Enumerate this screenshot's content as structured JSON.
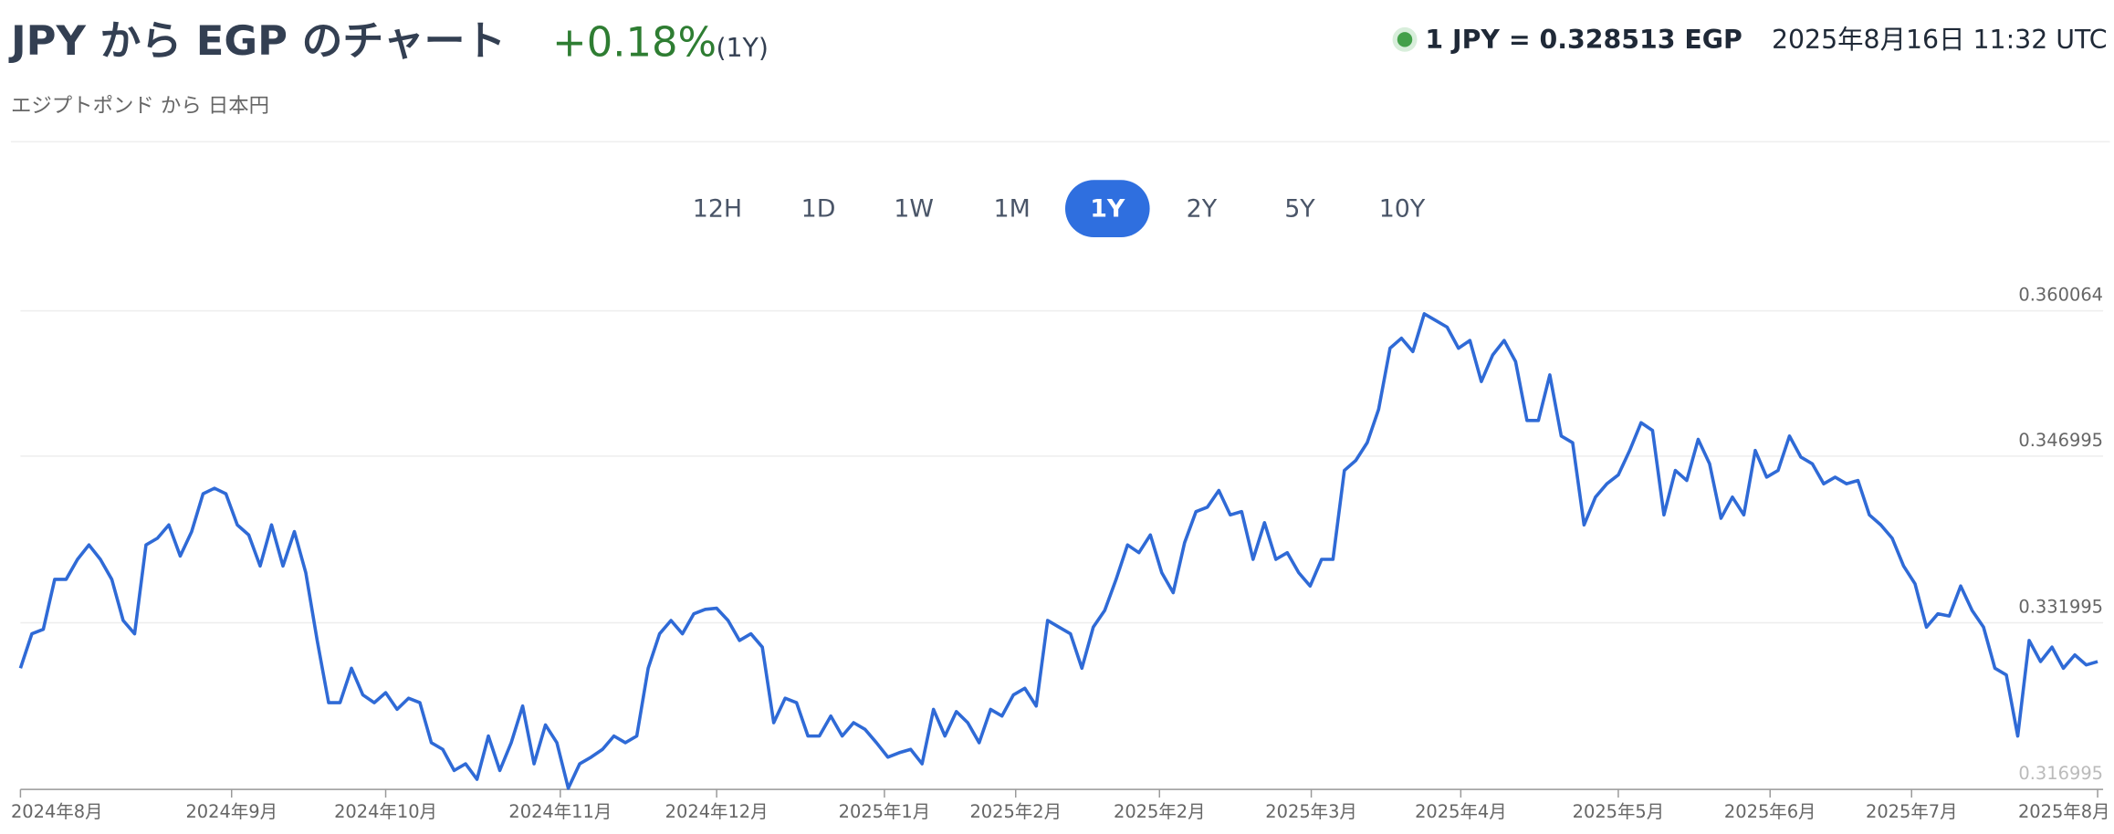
{
  "header": {
    "title": "JPY から EGP のチャート",
    "change": "+0.18%",
    "period": "(1Y)",
    "subtitle": "エジプトポンド から 日本円",
    "rate": "1 JPY = 0.328513 EGP",
    "timestamp": "2025年8月16日 11:32 UTC"
  },
  "range_buttons": {
    "labels": [
      "12H",
      "1D",
      "1W",
      "1M",
      "1Y",
      "2Y",
      "5Y",
      "10Y"
    ],
    "active_index": 4
  },
  "chart_data": {
    "type": "line",
    "color": "#2f6ad6",
    "grid": true,
    "values": [
      0.3279,
      0.331,
      0.3314,
      0.3359,
      0.3359,
      0.3377,
      0.339,
      0.3377,
      0.3359,
      0.3322,
      0.331,
      0.339,
      0.3396,
      0.3408,
      0.338,
      0.3402,
      0.3436,
      0.3441,
      0.3436,
      0.3408,
      0.3399,
      0.3371,
      0.3408,
      0.3371,
      0.3402,
      0.3365,
      0.3304,
      0.3248,
      0.3248,
      0.3279,
      0.3255,
      0.3248,
      0.3257,
      0.3242,
      0.3252,
      0.3248,
      0.3212,
      0.3206,
      0.3187,
      0.3193,
      0.3179,
      0.3218,
      0.3187,
      0.3212,
      0.3245,
      0.3193,
      0.3228,
      0.3212,
      0.3171,
      0.3193,
      0.3199,
      0.3206,
      0.3218,
      0.3212,
      0.3218,
      0.3279,
      0.331,
      0.3322,
      0.331,
      0.3328,
      0.3332,
      0.3333,
      0.3322,
      0.3304,
      0.331,
      0.3298,
      0.323,
      0.3252,
      0.3248,
      0.3218,
      0.3218,
      0.3236,
      0.3218,
      0.323,
      0.3224,
      0.3212,
      0.3199,
      0.3203,
      0.3206,
      0.3193,
      0.3242,
      0.3218,
      0.324,
      0.323,
      0.3212,
      0.3242,
      0.3236,
      0.3255,
      0.3261,
      0.3245,
      0.3322,
      0.3316,
      0.331,
      0.3279,
      0.3316,
      0.3331,
      0.3359,
      0.339,
      0.3383,
      0.3399,
      0.3365,
      0.3347,
      0.3392,
      0.342,
      0.3424,
      0.3439,
      0.3417,
      0.342,
      0.3377,
      0.341,
      0.3377,
      0.3383,
      0.3365,
      0.3353,
      0.3377,
      0.3377,
      0.3457,
      0.3466,
      0.3482,
      0.3512,
      0.3567,
      0.3576,
      0.3564,
      0.3598,
      0.3592,
      0.3586,
      0.3567,
      0.3574,
      0.3537,
      0.3561,
      0.3574,
      0.3555,
      0.3502,
      0.3502,
      0.3543,
      0.3488,
      0.3482,
      0.3408,
      0.3433,
      0.3445,
      0.3453,
      0.3475,
      0.35,
      0.3493,
      0.3417,
      0.3457,
      0.3448,
      0.3485,
      0.3463,
      0.3414,
      0.3433,
      0.3417,
      0.3475,
      0.3451,
      0.3457,
      0.3488,
      0.3469,
      0.3463,
      0.3445,
      0.3451,
      0.3445,
      0.3448,
      0.3417,
      0.3408,
      0.3396,
      0.3371,
      0.3355,
      0.3316,
      0.3328,
      0.3326,
      0.3353,
      0.3331,
      0.3316,
      0.3279,
      0.3273,
      0.3218,
      0.3304,
      0.3285,
      0.3298,
      0.3279,
      0.3291,
      0.3282,
      0.3285
    ],
    "xlim": [
      0,
      182
    ],
    "xticks": [
      {
        "value": 0,
        "label": "2024年8月"
      },
      {
        "value": 18.5,
        "label": "2024年9月"
      },
      {
        "value": 32,
        "label": "2024年10月"
      },
      {
        "value": 47.3,
        "label": "2024年11月"
      },
      {
        "value": 61,
        "label": "2024年12月"
      },
      {
        "value": 75.7,
        "label": "2025年1月"
      },
      {
        "value": 87.2,
        "label": "2025年2月"
      },
      {
        "value": 99.8,
        "label": "2025年2月"
      },
      {
        "value": 113.1,
        "label": "2025年3月"
      },
      {
        "value": 126.2,
        "label": "2025年4月"
      },
      {
        "value": 140,
        "label": "2025年5月"
      },
      {
        "value": 153.3,
        "label": "2025年6月"
      },
      {
        "value": 165.7,
        "label": "2025年7月"
      },
      {
        "value": 182,
        "label": "2025年8月"
      }
    ],
    "ylim": [
      0.316995,
      0.360064
    ],
    "yticks": [
      0.316995,
      0.331995,
      0.346995,
      0.360064
    ]
  }
}
